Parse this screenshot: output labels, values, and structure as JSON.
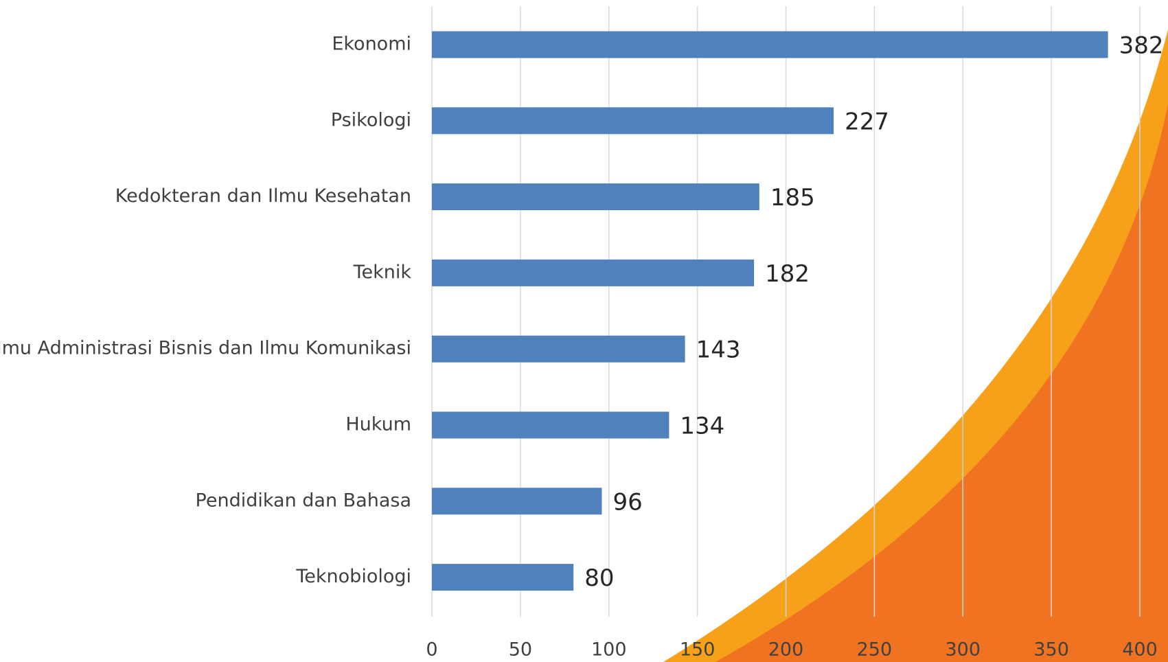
{
  "chart_data": {
    "type": "bar",
    "orientation": "horizontal",
    "categories": [
      "Ekonomi",
      "Psikologi",
      "Kedokteran dan Ilmu Kesehatan",
      "Teknik",
      "Ilmu Administrasi Bisnis dan Ilmu Komunikasi",
      "Hukum",
      "Pendidikan dan Bahasa",
      "Teknobiologi"
    ],
    "values": [
      382,
      227,
      185,
      182,
      143,
      134,
      96,
      80
    ],
    "color": "#4f81bd",
    "xlim": [
      0,
      400
    ],
    "xticks": [
      0,
      50,
      100,
      150,
      200,
      250,
      300,
      350,
      400
    ],
    "grid": true,
    "data_labels": true
  }
}
